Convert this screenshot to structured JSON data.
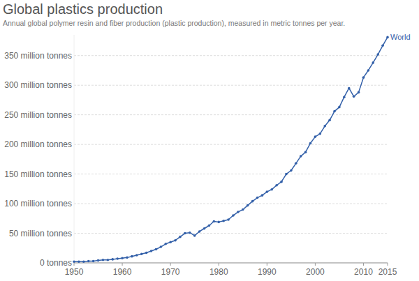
{
  "chart_data": {
    "type": "line",
    "title": "Global plastics production",
    "subtitle": "Annual global polymer resin and fiber production (plastic production), measured in metric tonnes per year.",
    "x": [
      1950,
      1951,
      1952,
      1953,
      1954,
      1955,
      1956,
      1957,
      1958,
      1959,
      1960,
      1961,
      1962,
      1963,
      1964,
      1965,
      1966,
      1967,
      1968,
      1969,
      1970,
      1971,
      1972,
      1973,
      1974,
      1975,
      1976,
      1977,
      1978,
      1979,
      1980,
      1981,
      1982,
      1983,
      1984,
      1985,
      1986,
      1987,
      1988,
      1989,
      1990,
      1991,
      1992,
      1993,
      1994,
      1995,
      1996,
      1997,
      1998,
      1999,
      2000,
      2001,
      2002,
      2003,
      2004,
      2005,
      2006,
      2007,
      2008,
      2009,
      2010,
      2011,
      2012,
      2013,
      2014,
      2015
    ],
    "series": [
      {
        "name": "World",
        "color": "#3360a9",
        "values": [
          2000000,
          2000000,
          2000000,
          3000000,
          3000000,
          4000000,
          5000000,
          5000000,
          6000000,
          7000000,
          8000000,
          9000000,
          11000000,
          13000000,
          15000000,
          17000000,
          20000000,
          23000000,
          27000000,
          32000000,
          35000000,
          38000000,
          44000000,
          50000000,
          51000000,
          46000000,
          53000000,
          58000000,
          63000000,
          70000000,
          69000000,
          71000000,
          73000000,
          80000000,
          86000000,
          90000000,
          97000000,
          104000000,
          110000000,
          114000000,
          120000000,
          124000000,
          131000000,
          137000000,
          150000000,
          156000000,
          168000000,
          180000000,
          187000000,
          202000000,
          213000000,
          218000000,
          231000000,
          241000000,
          256000000,
          263000000,
          280000000,
          295000000,
          281000000,
          288000000,
          313000000,
          325000000,
          338000000,
          352000000,
          367000000,
          381000000
        ]
      }
    ],
    "xlim": [
      1950,
      2015
    ],
    "xticks": [
      1950,
      1960,
      1970,
      1980,
      1990,
      2000,
      2010,
      2015
    ],
    "ylim": [
      0,
      385000000
    ],
    "yticks": [
      {
        "value": 0,
        "label": "0 tonnes"
      },
      {
        "value": 50000000,
        "label": "50 million tonnes"
      },
      {
        "value": 100000000,
        "label": "100 million tonnes"
      },
      {
        "value": 150000000,
        "label": "150 million tonnes"
      },
      {
        "value": 200000000,
        "label": "200 million tonnes"
      },
      {
        "value": 250000000,
        "label": "250 million tonnes"
      },
      {
        "value": 300000000,
        "label": "300 million tonnes"
      },
      {
        "value": 350000000,
        "label": "350 million tonnes"
      }
    ],
    "grid": true,
    "marker": "circle"
  }
}
